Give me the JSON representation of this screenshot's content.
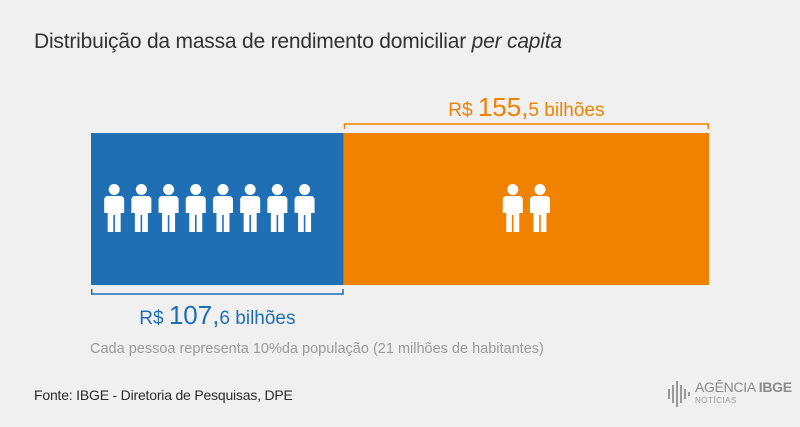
{
  "title": {
    "main": "Distribuição da massa de rendimento domiciliar ",
    "italic": "per capita"
  },
  "chart_data": {
    "type": "bar",
    "orientation": "horizontal-stacked",
    "unit": "bilhões",
    "segments": [
      {
        "label_prefix": "R$ ",
        "label_int": "107,",
        "label_dec": "6",
        "label_unit": " bilhões",
        "value": 107.6,
        "people": 8,
        "color": "#1f6fb5"
      },
      {
        "label_prefix": "R$ ",
        "label_int": "155,",
        "label_dec": "5",
        "label_unit": " bilhões",
        "value": 155.5,
        "people": 2,
        "color": "#f08200"
      }
    ]
  },
  "caption": "Cada pessoa representa 10%da população (21 milhões de habitantes)",
  "source": "Fonte: IBGE - Diretoria de Pesquisas, DPE",
  "logo": {
    "agencia": "AGÊNCIA ",
    "ibge": "IBGE",
    "sub": "NOTÍCIAS"
  }
}
